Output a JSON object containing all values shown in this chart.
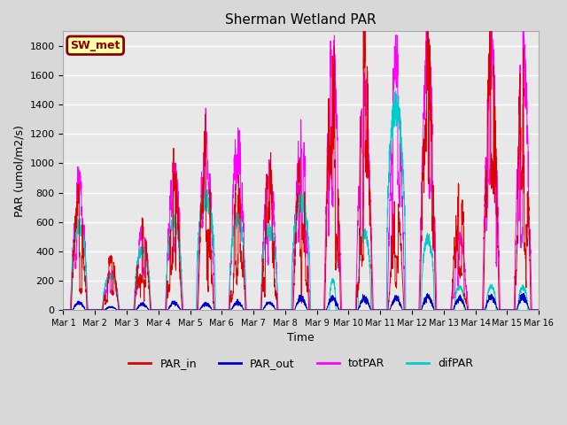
{
  "title": "Sherman Wetland PAR",
  "xlabel": "Time",
  "ylabel": "PAR (umol/m2/s)",
  "ylim": [
    0,
    1900
  ],
  "yticks": [
    0,
    200,
    400,
    600,
    800,
    1000,
    1200,
    1400,
    1600,
    1800
  ],
  "n_days": 15,
  "n_points_per_day": 288,
  "legend_label": "SW_met",
  "series_labels": [
    "PAR_in",
    "PAR_out",
    "totPAR",
    "difPAR"
  ],
  "series_colors": [
    "#dd0000",
    "#0000cc",
    "#ff00ff",
    "#00cccc"
  ],
  "background_color": "#d8d8d8",
  "plot_bg_color": "#e8e8e8",
  "grid_color": "#ffffff",
  "day_peaks_PAR_in": [
    780,
    340,
    570,
    900,
    1180,
    830,
    950,
    980,
    1720,
    1800,
    750,
    1720,
    800,
    1760,
    1760
  ],
  "day_peaks_PAR_out": [
    50,
    20,
    40,
    50,
    40,
    50,
    50,
    80,
    80,
    80,
    80,
    90,
    80,
    90,
    90
  ],
  "day_peaks_totPAR": [
    880,
    260,
    540,
    1000,
    1180,
    1160,
    960,
    1170,
    1720,
    1510,
    1690,
    1800,
    500,
    1800,
    1790
  ],
  "day_peaks_difPAR": [
    570,
    230,
    410,
    600,
    760,
    630,
    550,
    740,
    200,
    530,
    1380,
    480,
    160,
    160,
    155
  ],
  "day_width_difPAR": [
    0.5,
    0.5,
    0.5,
    0.5,
    0.6,
    0.5,
    0.5,
    0.6,
    0.2,
    0.4,
    0.6,
    0.4,
    0.3,
    0.3,
    0.3
  ]
}
